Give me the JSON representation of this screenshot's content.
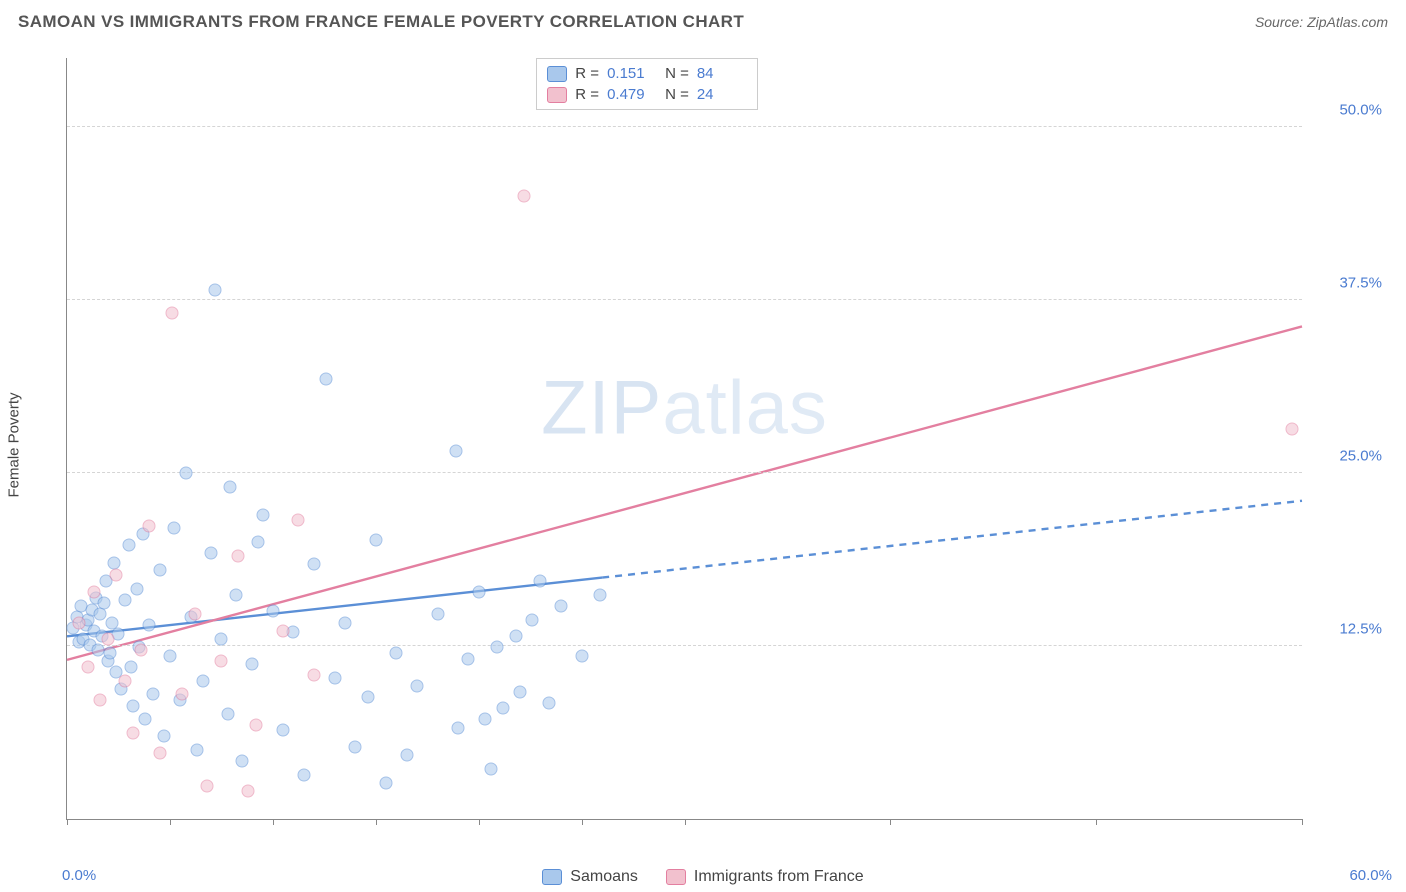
{
  "title": "SAMOAN VS IMMIGRANTS FROM FRANCE FEMALE POVERTY CORRELATION CHART",
  "source": "Source: ZipAtlas.com",
  "y_axis_title": "Female Poverty",
  "watermark": {
    "bold": "ZIP",
    "light": "atlas"
  },
  "chart": {
    "type": "scatter",
    "xlim": [
      0,
      60
    ],
    "ylim": [
      0,
      55
    ],
    "background_color": "#ffffff",
    "grid_color": "#d5d5d5",
    "axis_color": "#888888",
    "tick_label_color": "#4a7bd0",
    "y_gridlines": [
      12.5,
      25.0,
      37.5,
      50.0
    ],
    "y_tick_labels": [
      "12.5%",
      "25.0%",
      "37.5%",
      "50.0%"
    ],
    "x_ticks": [
      0,
      5,
      10,
      15,
      20,
      25,
      30,
      40,
      50,
      60
    ],
    "x_min_label": "0.0%",
    "x_max_label": "60.0%",
    "point_radius": 6.5,
    "point_opacity": 0.55,
    "series": [
      {
        "name": "Samoans",
        "fill": "#a9c8ec",
        "stroke": "#5b8fd6",
        "r": 0.151,
        "n": 84,
        "trend": {
          "x1": 0,
          "y1": 13.2,
          "x2": 60,
          "y2": 23.0,
          "solid_until_x": 26
        },
        "points": [
          [
            0.3,
            13.8
          ],
          [
            0.5,
            14.6
          ],
          [
            0.6,
            12.8
          ],
          [
            0.7,
            15.4
          ],
          [
            0.8,
            13.0
          ],
          [
            0.9,
            14.0
          ],
          [
            1.0,
            14.4
          ],
          [
            1.1,
            12.6
          ],
          [
            1.2,
            15.1
          ],
          [
            1.3,
            13.6
          ],
          [
            1.4,
            16.0
          ],
          [
            1.5,
            12.2
          ],
          [
            1.6,
            14.8
          ],
          [
            1.7,
            13.2
          ],
          [
            1.8,
            15.6
          ],
          [
            1.9,
            17.2
          ],
          [
            2.0,
            11.4
          ],
          [
            2.1,
            12.0
          ],
          [
            2.2,
            14.2
          ],
          [
            2.3,
            18.5
          ],
          [
            2.4,
            10.6
          ],
          [
            2.5,
            13.4
          ],
          [
            2.6,
            9.4
          ],
          [
            2.8,
            15.8
          ],
          [
            3.0,
            19.8
          ],
          [
            3.1,
            11.0
          ],
          [
            3.2,
            8.2
          ],
          [
            3.4,
            16.6
          ],
          [
            3.5,
            12.4
          ],
          [
            3.7,
            20.6
          ],
          [
            3.8,
            7.2
          ],
          [
            4.0,
            14.0
          ],
          [
            4.2,
            9.0
          ],
          [
            4.5,
            18.0
          ],
          [
            4.7,
            6.0
          ],
          [
            5.0,
            11.8
          ],
          [
            5.2,
            21.0
          ],
          [
            5.5,
            8.6
          ],
          [
            5.8,
            25.0
          ],
          [
            6.0,
            14.6
          ],
          [
            6.3,
            5.0
          ],
          [
            6.6,
            10.0
          ],
          [
            7.0,
            19.2
          ],
          [
            7.2,
            38.2
          ],
          [
            7.5,
            13.0
          ],
          [
            7.8,
            7.6
          ],
          [
            8.2,
            16.2
          ],
          [
            8.5,
            4.2
          ],
          [
            9.0,
            11.2
          ],
          [
            9.5,
            22.0
          ],
          [
            10.0,
            15.0
          ],
          [
            10.5,
            6.4
          ],
          [
            11.0,
            13.5
          ],
          [
            11.5,
            3.2
          ],
          [
            12.0,
            18.4
          ],
          [
            12.6,
            31.8
          ],
          [
            13.0,
            10.2
          ],
          [
            13.5,
            14.2
          ],
          [
            14.0,
            5.2
          ],
          [
            14.6,
            8.8
          ],
          [
            15.0,
            20.2
          ],
          [
            15.5,
            2.6
          ],
          [
            16.0,
            12.0
          ],
          [
            16.5,
            4.6
          ],
          [
            17.0,
            9.6
          ],
          [
            18.0,
            14.8
          ],
          [
            18.9,
            26.6
          ],
          [
            19.0,
            6.6
          ],
          [
            19.5,
            11.6
          ],
          [
            20.0,
            16.4
          ],
          [
            20.6,
            3.6
          ],
          [
            21.2,
            8.0
          ],
          [
            21.8,
            13.2
          ],
          [
            22.0,
            9.2
          ],
          [
            22.6,
            14.4
          ],
          [
            23.0,
            17.2
          ],
          [
            23.4,
            8.4
          ],
          [
            24.0,
            15.4
          ],
          [
            25.0,
            11.8
          ],
          [
            25.9,
            16.2
          ],
          [
            20.3,
            7.2
          ],
          [
            20.9,
            12.4
          ],
          [
            7.9,
            24.0
          ],
          [
            9.3,
            20.0
          ]
        ]
      },
      {
        "name": "Immigrants from France",
        "fill": "#f2c1ce",
        "stroke": "#e37fa0",
        "r": 0.479,
        "n": 24,
        "trend": {
          "x1": 0,
          "y1": 11.5,
          "x2": 60,
          "y2": 35.6,
          "solid_until_x": 60
        },
        "points": [
          [
            0.6,
            14.2
          ],
          [
            1.0,
            11.0
          ],
          [
            1.3,
            16.4
          ],
          [
            1.6,
            8.6
          ],
          [
            2.0,
            13.0
          ],
          [
            2.4,
            17.6
          ],
          [
            2.8,
            10.0
          ],
          [
            3.2,
            6.2
          ],
          [
            3.6,
            12.2
          ],
          [
            4.0,
            21.2
          ],
          [
            4.5,
            4.8
          ],
          [
            5.1,
            36.6
          ],
          [
            5.6,
            9.0
          ],
          [
            6.2,
            14.8
          ],
          [
            6.8,
            2.4
          ],
          [
            7.5,
            11.4
          ],
          [
            8.3,
            19.0
          ],
          [
            9.2,
            6.8
          ],
          [
            10.5,
            13.6
          ],
          [
            11.2,
            21.6
          ],
          [
            8.8,
            2.0
          ],
          [
            12.0,
            10.4
          ],
          [
            22.2,
            45.0
          ],
          [
            59.5,
            28.2
          ]
        ]
      }
    ]
  },
  "legend_top": {
    "rows": [
      {
        "swatch_fill": "#a9c8ec",
        "swatch_stroke": "#5b8fd6",
        "r_label": "R =",
        "r_val": "0.151",
        "n_label": "N =",
        "n_val": "84"
      },
      {
        "swatch_fill": "#f2c1ce",
        "swatch_stroke": "#e37fa0",
        "r_label": "R =",
        "r_val": "0.479",
        "n_label": "N =",
        "n_val": "24"
      }
    ]
  },
  "legend_bottom": {
    "items": [
      {
        "swatch_fill": "#a9c8ec",
        "swatch_stroke": "#5b8fd6",
        "label": "Samoans"
      },
      {
        "swatch_fill": "#f2c1ce",
        "swatch_stroke": "#e37fa0",
        "label": "Immigrants from France"
      }
    ]
  }
}
